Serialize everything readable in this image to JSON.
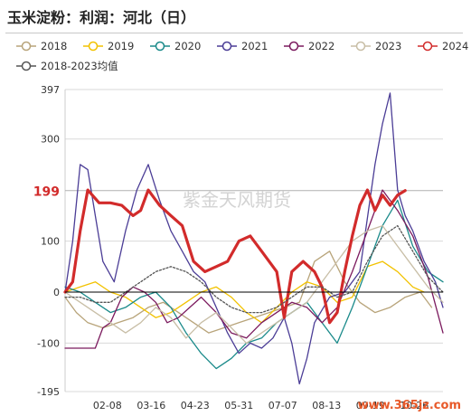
{
  "title": "玉米淀粉：利润：河北（日）",
  "watermark": "紫金天风期货",
  "site_watermark": "www.365jz.com",
  "chart_data": {
    "type": "line",
    "title": "玉米淀粉：利润：河北（日）",
    "xlabel": "",
    "ylabel": "",
    "ylim": [
      -195,
      397
    ],
    "y_ticks": [
      397,
      300,
      100,
      0,
      -100,
      -195
    ],
    "highlight_value": 199,
    "highlight_color": "#d22b2b",
    "grid": true,
    "legend_placement": "top",
    "x_tick_labels": [
      "02-08",
      "03-16",
      "04-23",
      "05-31",
      "07-07",
      "08-13",
      "09-19",
      "10-26"
    ],
    "x_ticks_frac": [
      0.112,
      0.228,
      0.344,
      0.46,
      0.576,
      0.692,
      0.808,
      0.924
    ],
    "series": [
      {
        "name": "2018",
        "color": "#b8a47a",
        "width": 1.3,
        "x": [
          0.0,
          0.03,
          0.06,
          0.1,
          0.14,
          0.18,
          0.22,
          0.26,
          0.3,
          0.34,
          0.38,
          0.42,
          0.46,
          0.5,
          0.54,
          0.58,
          0.62,
          0.66,
          0.7,
          0.74,
          0.78,
          0.82,
          0.86,
          0.9,
          0.94,
          0.97
        ],
        "y": [
          -10,
          -40,
          -60,
          -70,
          -60,
          -50,
          -30,
          -20,
          -40,
          -60,
          -80,
          -70,
          -60,
          -50,
          -40,
          -30,
          -20,
          60,
          80,
          20,
          -20,
          -40,
          -30,
          -10,
          0,
          -30
        ]
      },
      {
        "name": "2019",
        "color": "#f2c200",
        "width": 1.3,
        "x": [
          0.0,
          0.04,
          0.08,
          0.12,
          0.16,
          0.2,
          0.24,
          0.28,
          0.32,
          0.36,
          0.4,
          0.44,
          0.48,
          0.52,
          0.56,
          0.6,
          0.64,
          0.68,
          0.72,
          0.76,
          0.8,
          0.84,
          0.88,
          0.92,
          0.95
        ],
        "y": [
          0,
          10,
          20,
          0,
          -10,
          -30,
          -50,
          -40,
          -20,
          0,
          10,
          -10,
          -40,
          -60,
          -30,
          0,
          20,
          10,
          -20,
          -10,
          50,
          60,
          40,
          10,
          0
        ]
      },
      {
        "name": "2020",
        "color": "#1a8a8a",
        "width": 1.3,
        "x": [
          0.0,
          0.04,
          0.08,
          0.12,
          0.16,
          0.2,
          0.24,
          0.28,
          0.32,
          0.36,
          0.4,
          0.44,
          0.48,
          0.52,
          0.56,
          0.6,
          0.64,
          0.68,
          0.72,
          0.76,
          0.8,
          0.84,
          0.88,
          0.92,
          0.96,
          1.0
        ],
        "y": [
          10,
          0,
          -20,
          -40,
          -30,
          -10,
          0,
          -30,
          -80,
          -120,
          -150,
          -130,
          -100,
          -90,
          -60,
          -40,
          -20,
          -60,
          -100,
          -30,
          50,
          130,
          180,
          90,
          40,
          20
        ]
      },
      {
        "name": "2021",
        "color": "#4b3d96",
        "width": 1.3,
        "x": [
          0.0,
          0.02,
          0.04,
          0.06,
          0.08,
          0.1,
          0.13,
          0.16,
          0.19,
          0.22,
          0.25,
          0.28,
          0.31,
          0.34,
          0.37,
          0.4,
          0.43,
          0.46,
          0.49,
          0.52,
          0.55,
          0.58,
          0.6,
          0.62,
          0.64,
          0.66,
          0.7,
          0.74,
          0.78,
          0.82,
          0.84,
          0.86,
          0.88,
          0.9,
          0.92,
          0.95,
          0.98,
          1.0
        ],
        "y": [
          0,
          100,
          250,
          240,
          150,
          60,
          20,
          120,
          200,
          250,
          180,
          120,
          80,
          40,
          20,
          -30,
          -80,
          -120,
          -100,
          -110,
          -90,
          -50,
          -100,
          -180,
          -130,
          -60,
          -10,
          0,
          40,
          250,
          330,
          390,
          200,
          150,
          120,
          60,
          20,
          -30
        ]
      },
      {
        "name": "2022",
        "color": "#7b1a5e",
        "width": 1.3,
        "x": [
          0.0,
          0.04,
          0.08,
          0.1,
          0.12,
          0.15,
          0.18,
          0.21,
          0.24,
          0.27,
          0.3,
          0.33,
          0.36,
          0.4,
          0.44,
          0.48,
          0.52,
          0.56,
          0.6,
          0.64,
          0.68,
          0.72,
          0.76,
          0.8,
          0.84,
          0.88,
          0.92,
          0.96,
          1.0
        ],
        "y": [
          -110,
          -110,
          -110,
          -70,
          -60,
          -10,
          10,
          0,
          -20,
          -60,
          -50,
          -30,
          -10,
          -40,
          -80,
          -90,
          -60,
          -40,
          -20,
          -30,
          -60,
          -30,
          40,
          120,
          200,
          160,
          110,
          30,
          -80
        ]
      },
      {
        "name": "2023",
        "color": "#c8bea6",
        "width": 1.3,
        "x": [
          0.0,
          0.04,
          0.08,
          0.12,
          0.16,
          0.2,
          0.24,
          0.28,
          0.32,
          0.36,
          0.4,
          0.44,
          0.48,
          0.52,
          0.56,
          0.6,
          0.64,
          0.68,
          0.72,
          0.76,
          0.8,
          0.84,
          0.88,
          0.92,
          0.96,
          1.0
        ],
        "y": [
          0,
          -20,
          -40,
          -60,
          -80,
          -60,
          -30,
          -50,
          -90,
          -60,
          -40,
          -70,
          -100,
          -80,
          -60,
          -40,
          -20,
          20,
          60,
          100,
          120,
          130,
          90,
          50,
          10,
          -20
        ]
      },
      {
        "name": "2024",
        "color": "#d22b2b",
        "width": 3.2,
        "x": [
          0.0,
          0.02,
          0.04,
          0.06,
          0.09,
          0.12,
          0.15,
          0.18,
          0.2,
          0.22,
          0.25,
          0.28,
          0.31,
          0.34,
          0.37,
          0.4,
          0.43,
          0.46,
          0.49,
          0.52,
          0.54,
          0.56,
          0.58,
          0.6,
          0.63,
          0.66,
          0.68,
          0.7,
          0.72,
          0.74,
          0.76,
          0.78,
          0.8,
          0.82,
          0.84,
          0.86,
          0.88,
          0.9
        ],
        "y": [
          0,
          20,
          120,
          200,
          175,
          175,
          170,
          150,
          160,
          200,
          170,
          150,
          130,
          60,
          40,
          50,
          60,
          100,
          110,
          80,
          60,
          40,
          -50,
          40,
          60,
          40,
          10,
          -60,
          -40,
          40,
          110,
          170,
          200,
          160,
          190,
          170,
          190,
          199
        ]
      },
      {
        "name": "2018-2023均值",
        "color": "#555555",
        "width": 1.3,
        "dashed": true,
        "x": [
          0.0,
          0.04,
          0.08,
          0.12,
          0.16,
          0.2,
          0.24,
          0.28,
          0.32,
          0.36,
          0.4,
          0.44,
          0.48,
          0.52,
          0.56,
          0.6,
          0.64,
          0.68,
          0.72,
          0.76,
          0.8,
          0.84,
          0.88,
          0.92,
          0.96,
          1.0
        ],
        "y": [
          -10,
          -10,
          -20,
          -20,
          0,
          20,
          40,
          50,
          40,
          20,
          -10,
          -30,
          -40,
          -40,
          -30,
          -10,
          10,
          10,
          -10,
          0,
          60,
          110,
          130,
          80,
          30,
          0
        ]
      }
    ]
  }
}
